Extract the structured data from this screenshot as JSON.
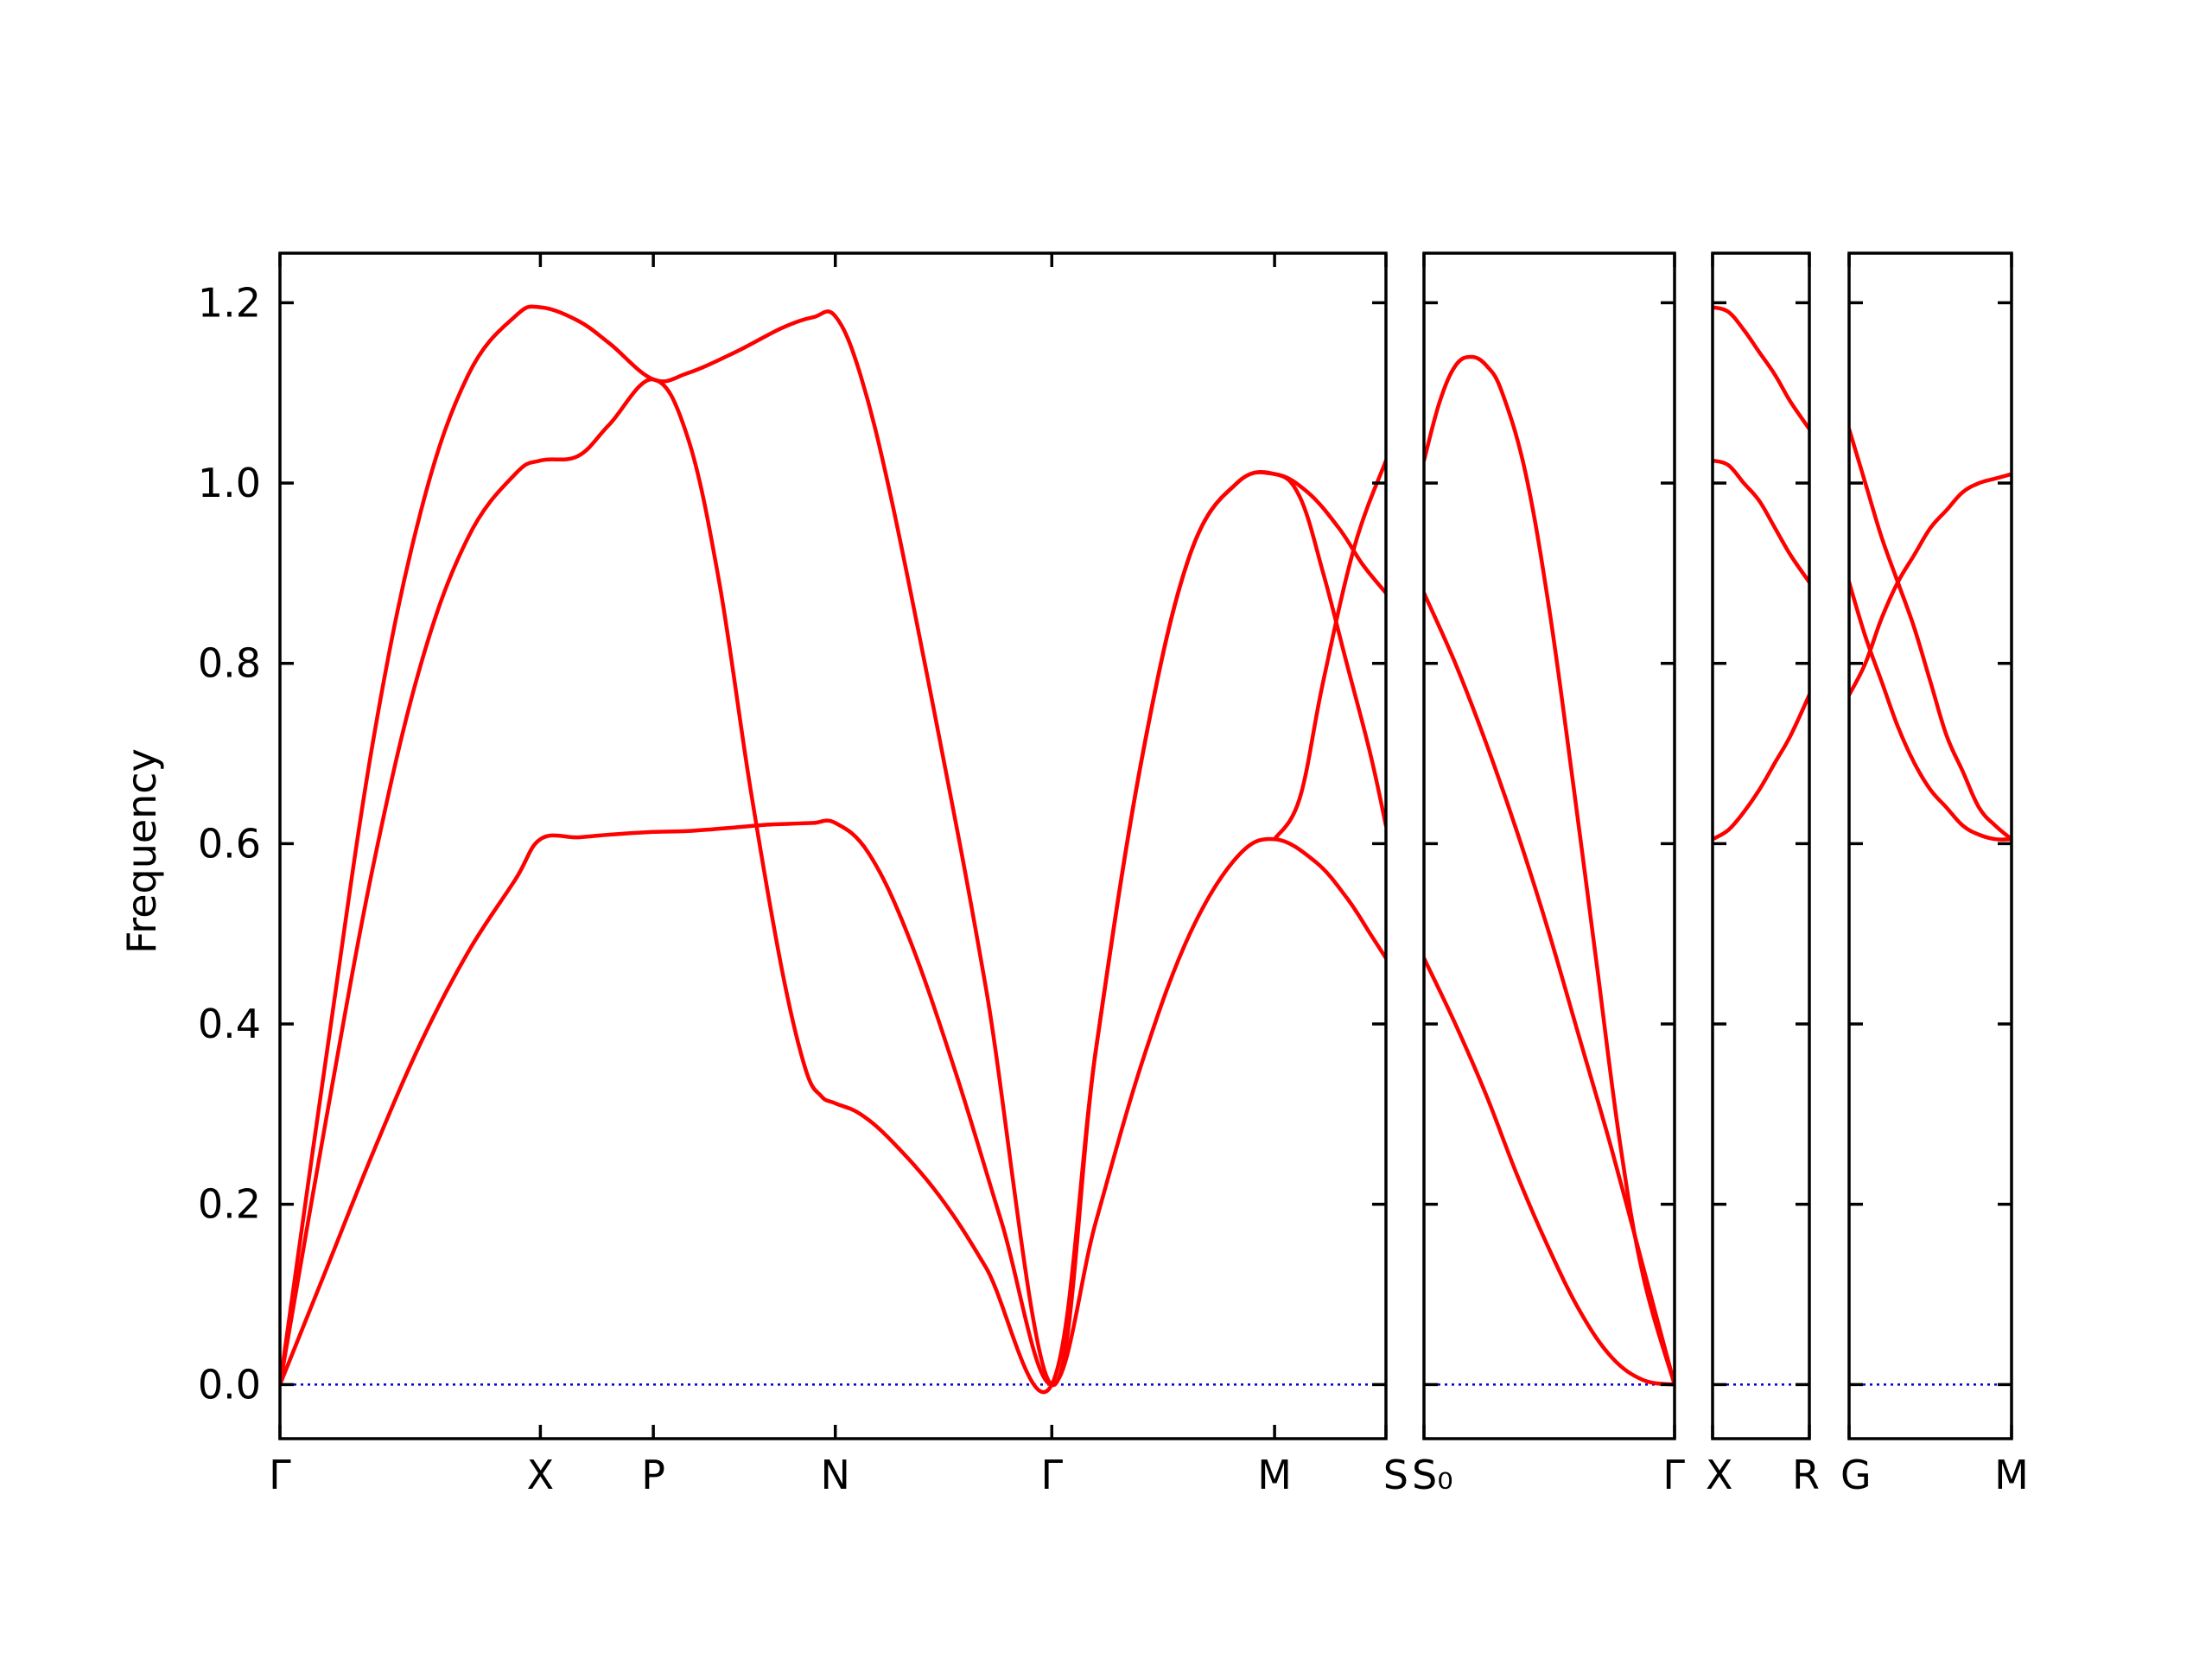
{
  "chart_data": {
    "type": "line",
    "title": "",
    "ylabel": "Frequency",
    "ylim": [
      -0.06,
      1.255
    ],
    "yticks": [
      "0.0",
      "0.2",
      "0.4",
      "0.6",
      "0.8",
      "1.0",
      "1.2"
    ],
    "ytick_values": [
      0.0,
      0.2,
      0.4,
      0.6,
      0.8,
      1.0,
      1.2
    ],
    "colors": {
      "band": "#ff0000",
      "zero_line": "#0000cc"
    },
    "grid": false,
    "panels": [
      {
        "xlim": [
          0,
          7.05
        ],
        "points": [
          {
            "x": 0.0,
            "label": "Γ"
          },
          {
            "x": 1.66,
            "label": "X"
          },
          {
            "x": 2.38,
            "label": "P"
          },
          {
            "x": 3.54,
            "label": "N"
          },
          {
            "x": 4.92,
            "label": "Γ"
          },
          {
            "x": 6.34,
            "label": "M"
          },
          {
            "x": 7.05,
            "label": "S"
          }
        ],
        "bands": [
          {
            "x": [
              0.0,
              0.3,
              0.6,
              0.9,
              1.2,
              1.5,
              1.66,
              1.9,
              2.1,
              2.38,
              2.6,
              2.9,
              3.1,
              3.25,
              3.4,
              3.54,
              3.75,
              4.0,
              4.3,
              4.6,
              4.92,
              5.2,
              5.5,
              5.8,
              6.1,
              6.34,
              6.6,
              6.8,
              6.95,
              7.05
            ],
            "y": [
              0.0,
              0.13,
              0.26,
              0.38,
              0.48,
              0.56,
              0.605,
              0.607,
              0.61,
              0.613,
              0.614,
              0.618,
              0.621,
              0.622,
              0.623,
              0.623,
              0.59,
              0.5,
              0.35,
              0.18,
              0.0,
              0.18,
              0.36,
              0.5,
              0.585,
              0.605,
              0.58,
              0.54,
              0.5,
              0.473
            ]
          },
          {
            "x": [
              0.0,
              0.3,
              0.6,
              0.9,
              1.2,
              1.5,
              1.66,
              1.9,
              2.1,
              2.38,
              2.6,
              2.8,
              3.0,
              3.2,
              3.35,
              3.45,
              3.54,
              3.7,
              3.9,
              4.2,
              4.5,
              4.92,
              5.2,
              5.5,
              5.8,
              6.1,
              6.34,
              6.55,
              6.75,
              6.9,
              7.05
            ],
            "y": [
              0.0,
              0.3,
              0.58,
              0.8,
              0.94,
              1.01,
              1.025,
              1.03,
              1.065,
              1.115,
              1.05,
              0.89,
              0.66,
              0.46,
              0.35,
              0.32,
              0.312,
              0.3,
              0.27,
              0.21,
              0.13,
              0.0,
              0.37,
              0.7,
              0.92,
              1.0,
              1.01,
              0.99,
              0.95,
              0.91,
              0.878
            ]
          },
          {
            "x": [
              0.0,
              0.3,
              0.6,
              0.9,
              1.2,
              1.5,
              1.66,
              1.9,
              2.1,
              2.38,
              2.6,
              2.9,
              3.2,
              3.4,
              3.54,
              3.7,
              3.9,
              4.2,
              4.5,
              4.92,
              5.2,
              5.5,
              5.8,
              6.1,
              6.34,
              6.5,
              6.65,
              6.8,
              6.95,
              7.05
            ],
            "y": [
              0.0,
              0.37,
              0.72,
              0.97,
              1.12,
              1.185,
              1.195,
              1.18,
              1.155,
              1.115,
              1.122,
              1.145,
              1.172,
              1.184,
              1.185,
              1.12,
              0.98,
              0.72,
              0.44,
              0.0,
              0.37,
              0.7,
              0.92,
              1.0,
              1.01,
              0.985,
              0.9,
              0.8,
              0.7,
              0.62
            ]
          }
        ],
        "band_overrides": "band 3 rises from M to S: 0.605 -> 1.025"
      },
      {
        "xlim": [
          0,
          1.6
        ],
        "points": [
          {
            "x": 0.0,
            "label": "S₀"
          },
          {
            "x": 1.6,
            "label": "Γ"
          }
        ],
        "bands": [
          {
            "x": [
              0.0,
              0.2,
              0.4,
              0.6,
              0.8,
              1.0,
              1.2,
              1.4,
              1.6
            ],
            "y": [
              0.473,
              0.4,
              0.32,
              0.23,
              0.15,
              0.08,
              0.03,
              0.005,
              0.0
            ]
          },
          {
            "x": [
              0.0,
              0.2,
              0.4,
              0.6,
              0.8,
              1.0,
              1.2,
              1.4,
              1.6
            ],
            "y": [
              0.878,
              0.8,
              0.71,
              0.61,
              0.5,
              0.38,
              0.26,
              0.13,
              0.0
            ]
          },
          {
            "x": [
              0.0,
              0.1,
              0.2,
              0.3,
              0.4,
              0.5,
              0.65,
              0.8,
              0.95,
              1.1,
              1.25,
              1.4,
              1.6
            ],
            "y": [
              1.025,
              1.09,
              1.13,
              1.14,
              1.13,
              1.1,
              1.01,
              0.86,
              0.67,
              0.47,
              0.27,
              0.12,
              0.0
            ]
          }
        ]
      },
      {
        "xlim": [
          0,
          0.62
        ],
        "points": [
          {
            "x": 0.0,
            "label": "X"
          },
          {
            "x": 0.62,
            "label": "R"
          }
        ],
        "bands": [
          {
            "x": [
              0.0,
              0.1,
              0.2,
              0.3,
              0.4,
              0.5,
              0.62
            ],
            "y": [
              0.605,
              0.615,
              0.635,
              0.66,
              0.69,
              0.72,
              0.765
            ]
          },
          {
            "x": [
              0.0,
              0.1,
              0.2,
              0.3,
              0.4,
              0.5,
              0.62
            ],
            "y": [
              1.025,
              1.02,
              1.0,
              0.98,
              0.95,
              0.92,
              0.89
            ]
          },
          {
            "x": [
              0.0,
              0.1,
              0.2,
              0.3,
              0.4,
              0.5,
              0.62
            ],
            "y": [
              1.195,
              1.19,
              1.17,
              1.145,
              1.12,
              1.09,
              1.06
            ]
          }
        ]
      },
      {
        "xlim": [
          0,
          1.0
        ],
        "points": [
          {
            "x": 0.0,
            "label": "G"
          },
          {
            "x": 1.0,
            "label": "M"
          }
        ],
        "bands": [
          {
            "x": [
              0.0,
              0.1,
              0.2,
              0.3,
              0.4,
              0.5,
              0.6,
              0.7,
              0.8,
              0.9,
              1.0
            ],
            "y": [
              0.765,
              0.8,
              0.85,
              0.89,
              0.92,
              0.95,
              0.97,
              0.99,
              1.0,
              1.005,
              1.01
            ]
          },
          {
            "x": [
              0.0,
              0.1,
              0.2,
              0.3,
              0.4,
              0.5,
              0.6,
              0.7,
              0.8,
              0.9,
              1.0
            ],
            "y": [
              0.89,
              0.83,
              0.78,
              0.73,
              0.69,
              0.66,
              0.64,
              0.62,
              0.61,
              0.605,
              0.605
            ]
          },
          {
            "x": [
              0.0,
              0.1,
              0.2,
              0.3,
              0.4,
              0.5,
              0.6,
              0.7,
              0.8,
              0.9,
              1.0
            ],
            "y": [
              1.06,
              1.0,
              0.94,
              0.89,
              0.84,
              0.78,
              0.72,
              0.68,
              0.64,
              0.62,
              0.605
            ]
          }
        ]
      }
    ]
  }
}
